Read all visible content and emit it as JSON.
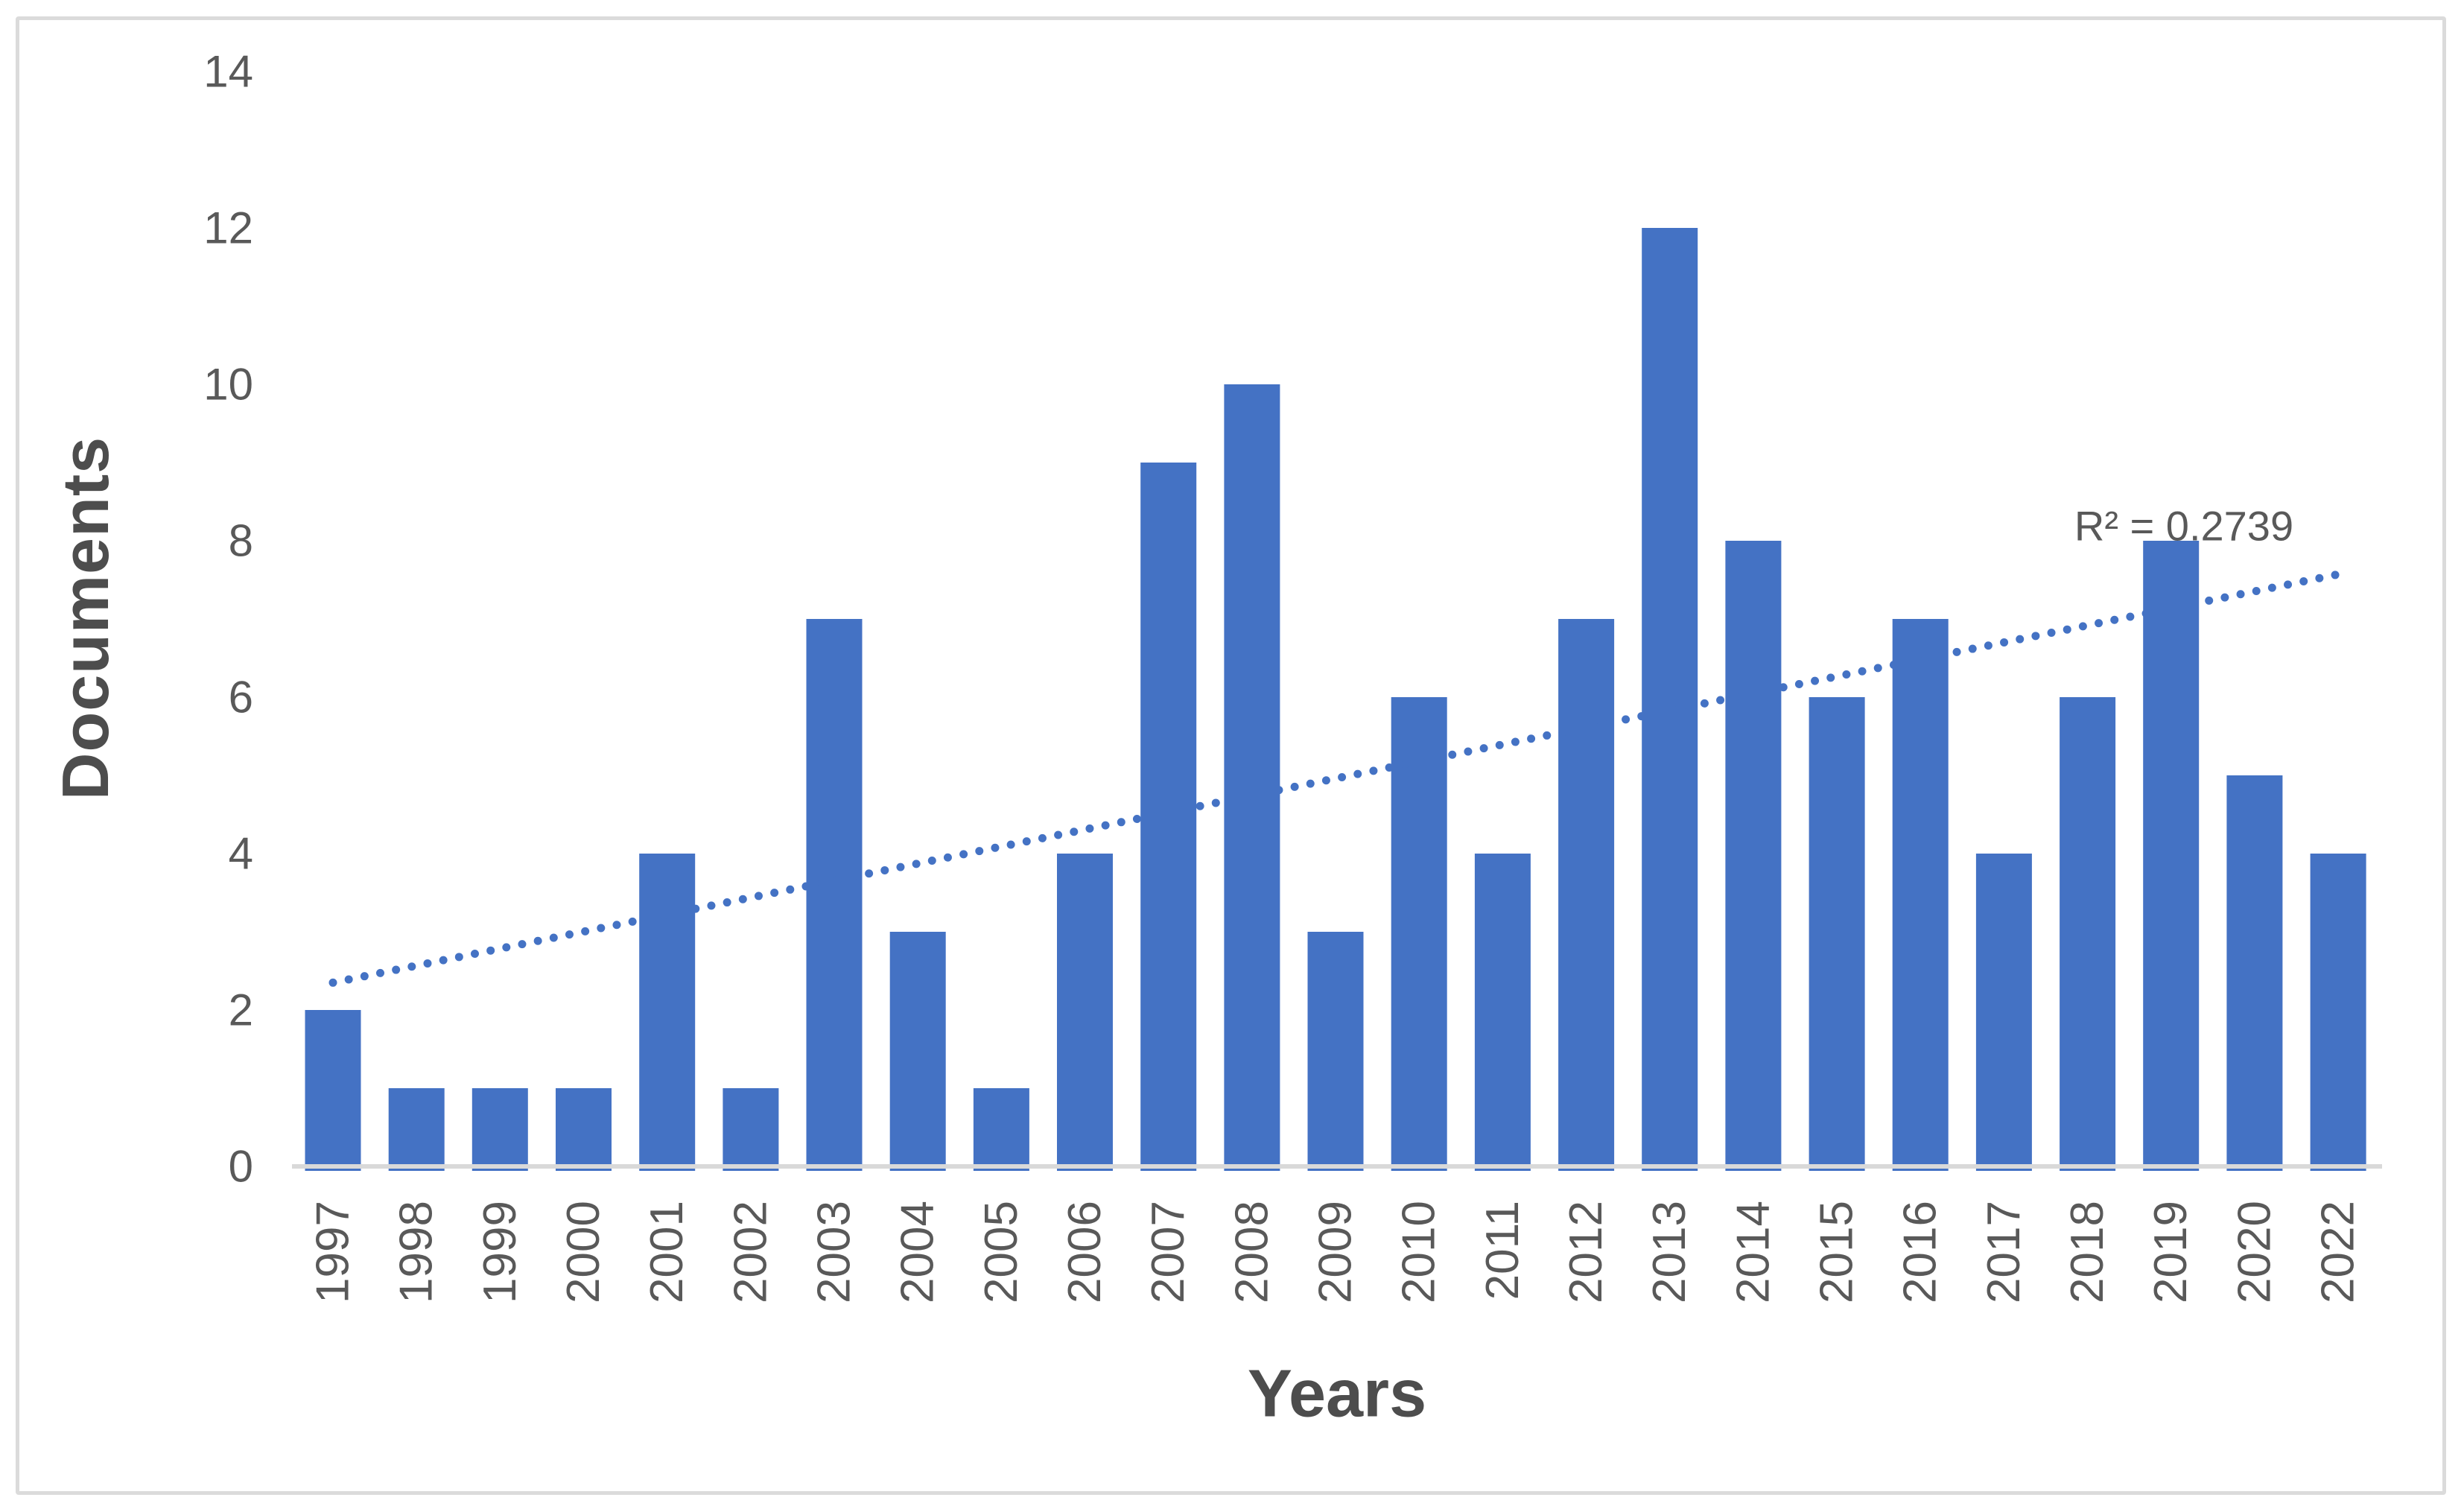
{
  "chart_data": {
    "type": "bar",
    "title": "",
    "xlabel": "Years",
    "ylabel": "Documents",
    "categories": [
      "1997",
      "1998",
      "1999",
      "2000",
      "2001",
      "2002",
      "2003",
      "2004",
      "2005",
      "2006",
      "2007",
      "2008",
      "2009",
      "2010",
      "2011",
      "2012",
      "2013",
      "2014",
      "2015",
      "2016",
      "2017",
      "2018",
      "2019",
      "2020",
      "2022"
    ],
    "values": [
      2,
      1,
      1,
      1,
      4,
      1,
      7,
      3,
      1,
      4,
      9,
      10,
      3,
      6,
      4,
      7,
      12,
      8,
      6,
      7,
      4,
      6,
      8,
      5,
      4
    ],
    "yticks": [
      0,
      2,
      4,
      6,
      8,
      10,
      12,
      14
    ],
    "ylim": [
      0,
      14
    ],
    "grid": false,
    "legend": false,
    "bar_color": "#4472C4",
    "trendline": {
      "type": "linear",
      "style": "dotted",
      "color": "#4472C4",
      "start_value": 2.35,
      "end_value": 7.57,
      "r_squared": 0.2739,
      "label": "R² = 0.2739"
    }
  },
  "colors": {
    "bar": "#4472C4",
    "trendline": "#4472C4",
    "axis_line": "#D9D9D9",
    "tick_text": "#595959",
    "title_text": "#4d4d4d",
    "frame_border": "#DBDBDB",
    "background": "#FFFFFF"
  }
}
